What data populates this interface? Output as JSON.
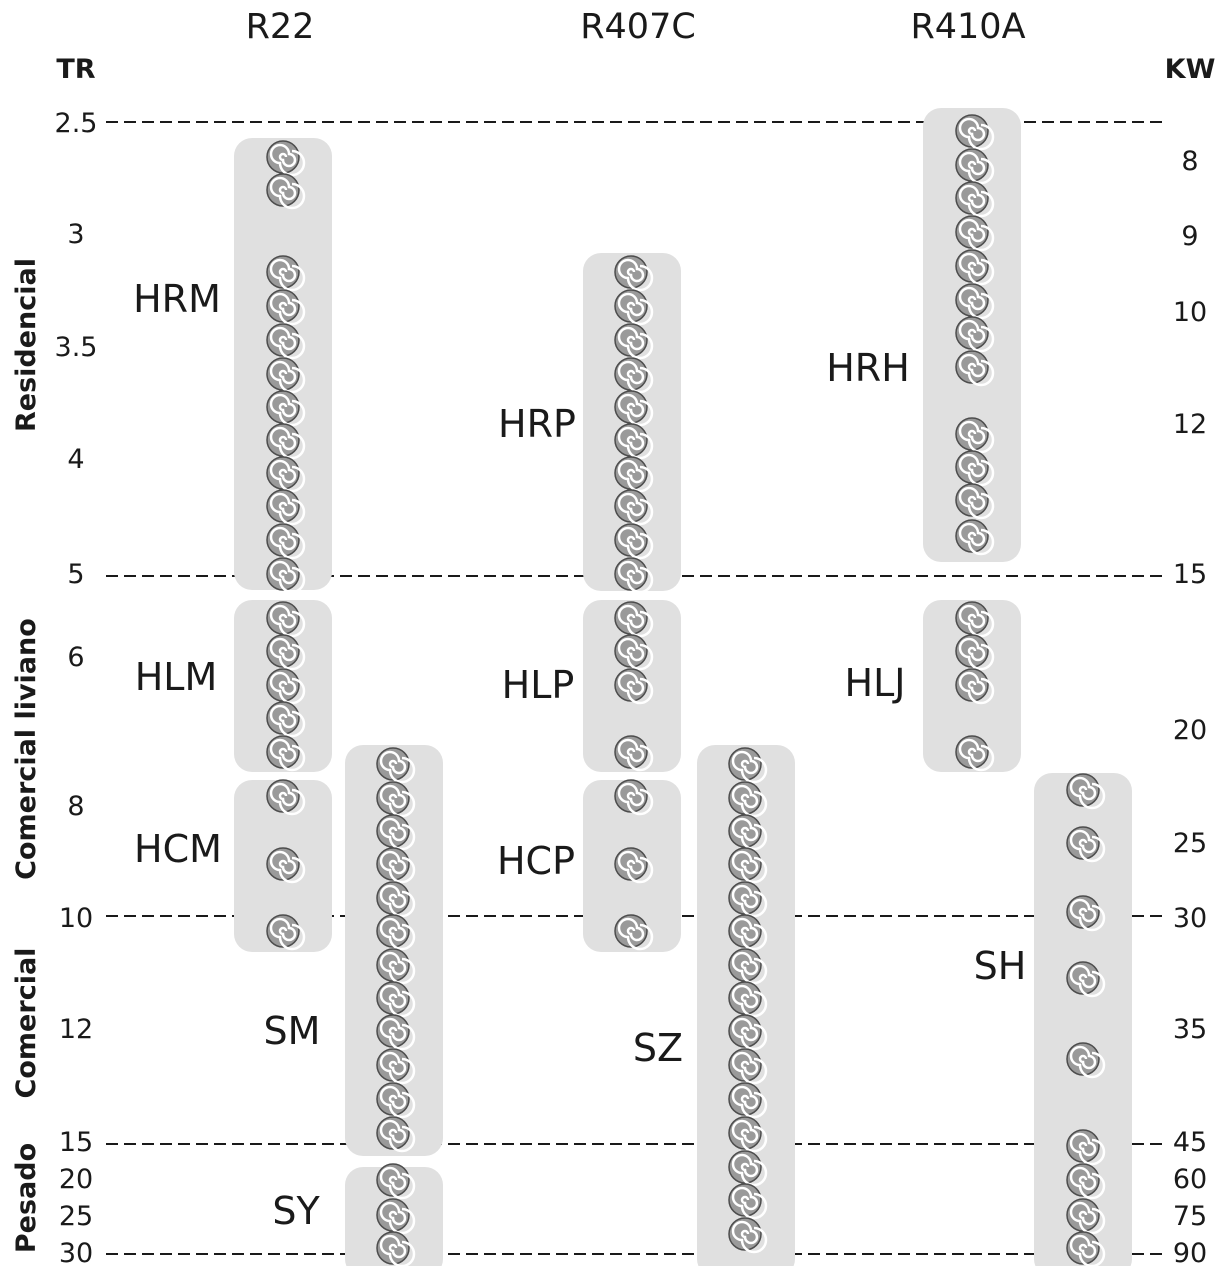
{
  "refrigerants": [
    "R22",
    "R407C",
    "R410A"
  ],
  "left_axis": {
    "unit": "TR",
    "ticks": [
      "2.5",
      "3",
      "3.5",
      "4",
      "5",
      "6",
      "8",
      "10",
      "12",
      "15",
      "20",
      "25",
      "30"
    ]
  },
  "right_axis": {
    "unit": "KW",
    "ticks": [
      "8",
      "9",
      "10",
      "12",
      "15",
      "20",
      "25",
      "30",
      "35",
      "45",
      "60",
      "75",
      "90"
    ]
  },
  "segments": [
    "Residencial",
    "Comercial liviano",
    "Comercial",
    "Pesado"
  ],
  "families": [
    {
      "label": "HRM",
      "refrigerant": "R22",
      "units": 13
    },
    {
      "label": "HLM",
      "refrigerant": "R22",
      "units": 5
    },
    {
      "label": "HCM",
      "refrigerant": "R22",
      "units": 3
    },
    {
      "label": "SM",
      "refrigerant": "R22",
      "units": 12
    },
    {
      "label": "SY",
      "refrigerant": "R22",
      "units": 3
    },
    {
      "label": "HRP",
      "refrigerant": "R407C",
      "units": 10
    },
    {
      "label": "HLP",
      "refrigerant": "R407C",
      "units": 4
    },
    {
      "label": "HCP",
      "refrigerant": "R407C",
      "units": 3
    },
    {
      "label": "SZ",
      "refrigerant": "R407C",
      "units": 15
    },
    {
      "label": "HRH",
      "refrigerant": "R410A",
      "units": 12
    },
    {
      "label": "HLJ",
      "refrigerant": "R410A",
      "units": 4
    },
    {
      "label": "SH",
      "refrigerant": "R410A",
      "units": 9
    }
  ],
  "icon": "scroll-compressor-icon",
  "colors": {
    "box": "#e0e0e0",
    "icon_fill": "#9a9a9a",
    "icon_stroke": "#4d4d4d",
    "line": "#1a1a1a"
  }
}
